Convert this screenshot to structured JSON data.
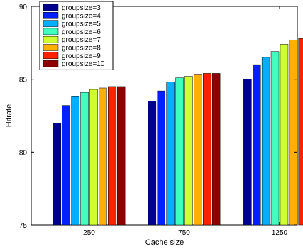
{
  "chart_data": {
    "type": "bar",
    "title": "",
    "xlabel": "Cache size",
    "ylabel": "Hitrate",
    "categories": [
      "250",
      "750",
      "1250"
    ],
    "ylim": [
      75,
      90
    ],
    "yticks": [
      75,
      80,
      85,
      90
    ],
    "grid": false,
    "legend_position": "top-left",
    "series": [
      {
        "name": "groupsize=3",
        "color": "#00008f",
        "values": [
          82.0,
          83.5,
          85.0
        ]
      },
      {
        "name": "groupsize=4",
        "color": "#0020ff",
        "values": [
          83.2,
          84.2,
          86.0
        ]
      },
      {
        "name": "groupsize=5",
        "color": "#00afff",
        "values": [
          83.8,
          84.8,
          86.5
        ]
      },
      {
        "name": "groupsize=6",
        "color": "#40ffbf",
        "values": [
          84.1,
          85.1,
          86.9
        ]
      },
      {
        "name": "groupsize=7",
        "color": "#cfff30",
        "values": [
          84.3,
          85.2,
          87.4
        ]
      },
      {
        "name": "groupsize=8",
        "color": "#ffaf00",
        "values": [
          84.4,
          85.3,
          87.7
        ]
      },
      {
        "name": "groupsize=9",
        "color": "#ff2000",
        "values": [
          84.5,
          85.4,
          87.8
        ]
      },
      {
        "name": "groupsize=10",
        "color": "#8f0000",
        "values": [
          84.5,
          85.4,
          87.9
        ]
      }
    ]
  }
}
